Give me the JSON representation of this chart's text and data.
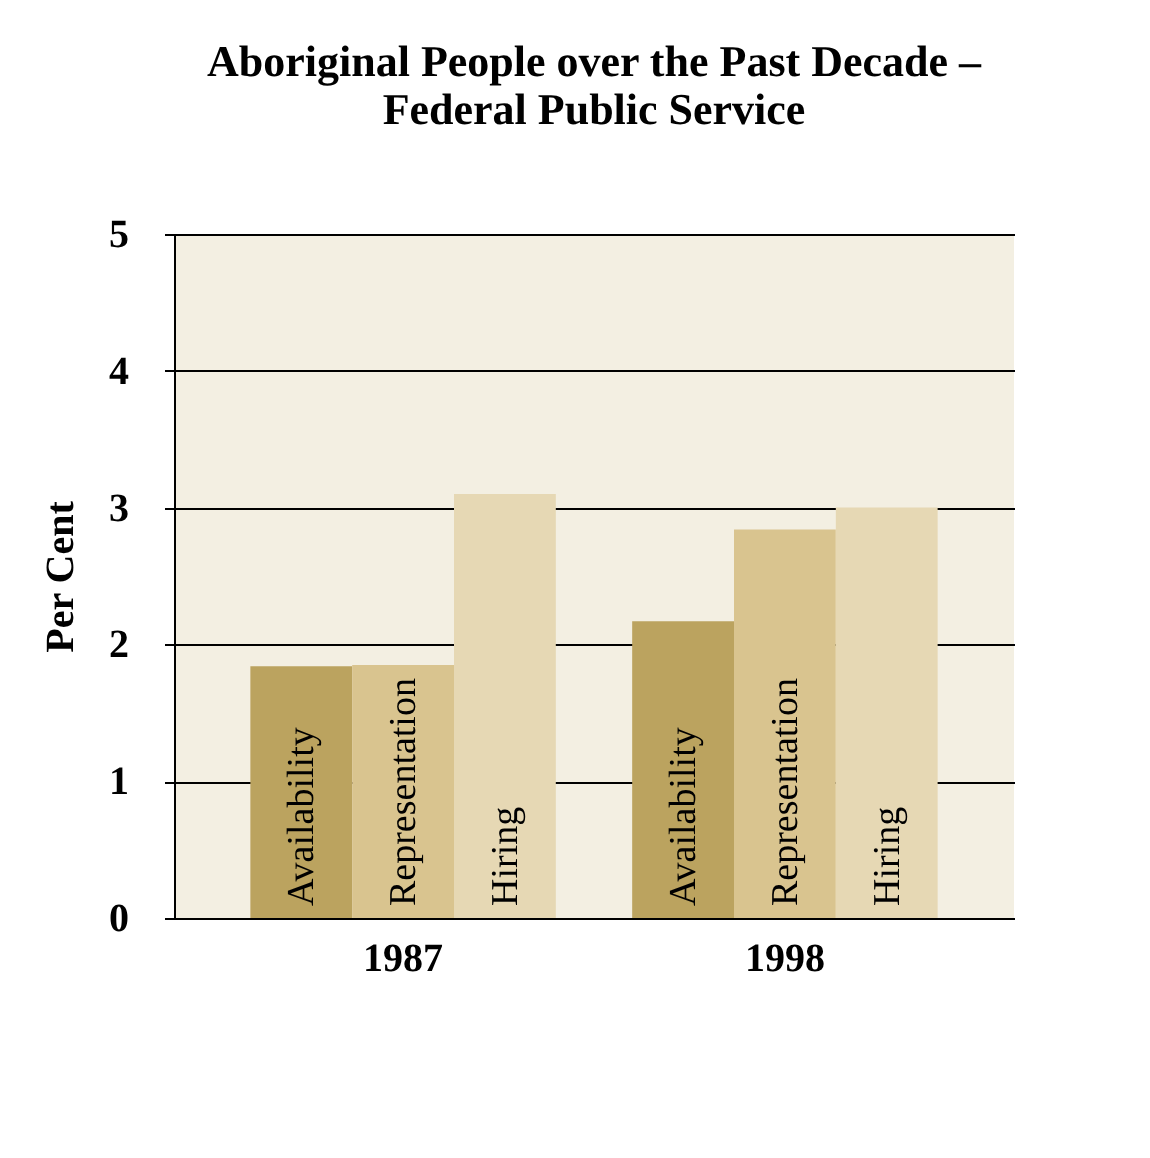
{
  "chart_data": {
    "type": "bar",
    "title": "Aboriginal People over the Past Decade –\nFederal Public Service",
    "ylabel": "Per Cent",
    "categories": [
      "1987",
      "1998"
    ],
    "series": [
      {
        "name": "Availability",
        "color": "#bba35f",
        "values": [
          1.84,
          2.17
        ]
      },
      {
        "name": "Representation",
        "color": "#d9c48f",
        "values": [
          1.85,
          2.84
        ]
      },
      {
        "name": "Hiring",
        "color": "#e6d8b4",
        "values": [
          3.1,
          3.0
        ]
      }
    ],
    "ylim": [
      0,
      5
    ],
    "yticks": [
      0,
      1,
      2,
      3,
      4,
      5
    ],
    "grid": "y",
    "legend": false
  }
}
